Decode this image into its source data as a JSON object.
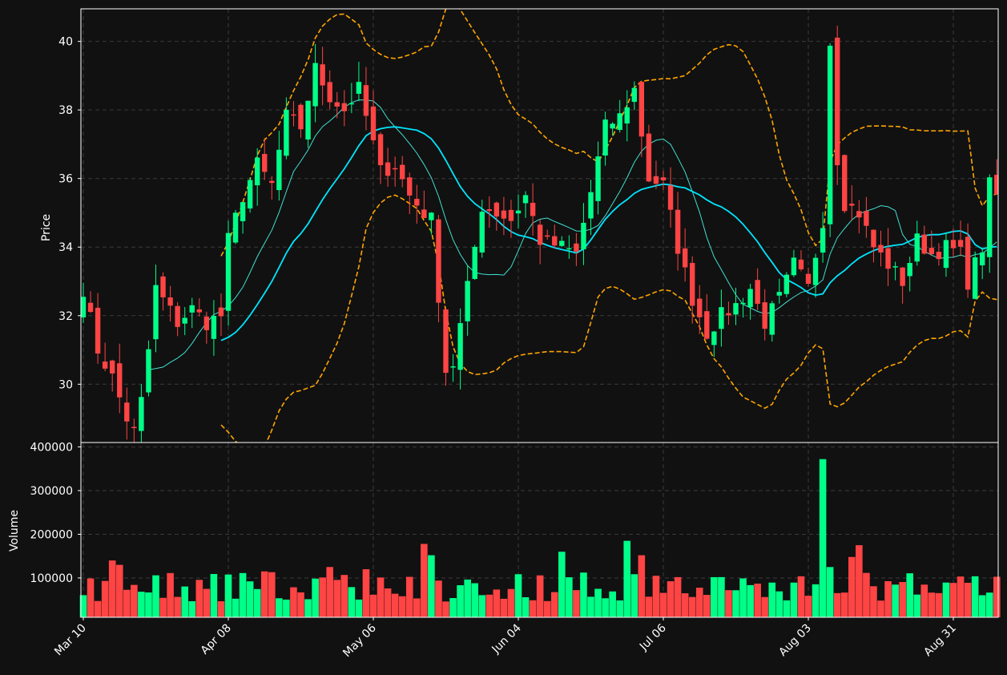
{
  "chart_data": {
    "type": "candlestick",
    "up_color": "#00ff88",
    "down_color": "#ff4444",
    "ma_fast_color": "#40e0d0",
    "ma_slow_color": "#00e5ff",
    "band_color": "#ffa500",
    "background": "#111111",
    "grid": true,
    "price_panel": {
      "ylabel": "Price",
      "ylim": [
        28.3,
        40.95
      ],
      "yticks": [
        30,
        32,
        34,
        36,
        38,
        40
      ]
    },
    "volume_panel": {
      "ylabel": "Volume",
      "ylim": [
        10000,
        410000
      ],
      "yticks": [
        100000,
        200000,
        300000,
        400000
      ]
    },
    "x_tick_labels": [
      "Mar 10",
      "Apr 08",
      "May 06",
      "Jun 04",
      "Jul 06",
      "Aug 03",
      "Aug 31"
    ],
    "x_tick_index": [
      0,
      20,
      40,
      60,
      80,
      100,
      120
    ],
    "n_bars": 127,
    "close_anchors": [
      [
        0,
        32.8
      ],
      [
        2,
        31.0
      ],
      [
        4,
        30.2
      ],
      [
        6,
        29.0
      ],
      [
        7,
        28.6
      ],
      [
        8,
        29.5
      ],
      [
        9,
        31.0
      ],
      [
        10,
        32.8
      ],
      [
        13,
        31.8
      ],
      [
        15,
        32.2
      ],
      [
        17,
        31.8
      ],
      [
        19,
        32.0
      ],
      [
        20,
        34.2
      ],
      [
        22,
        35.5
      ],
      [
        24,
        36.4
      ],
      [
        26,
        35.8
      ],
      [
        28,
        37.8
      ],
      [
        30,
        37.5
      ],
      [
        32,
        39.2
      ],
      [
        34,
        38.4
      ],
      [
        36,
        38.0
      ],
      [
        38,
        38.6
      ],
      [
        40,
        37.0
      ],
      [
        41,
        36.2
      ],
      [
        43,
        36.4
      ],
      [
        45,
        35.5
      ],
      [
        47,
        35.0
      ],
      [
        48,
        34.8
      ],
      [
        50,
        30.4
      ],
      [
        51,
        30.6
      ],
      [
        53,
        32.8
      ],
      [
        55,
        35.2
      ],
      [
        57,
        35.0
      ],
      [
        59,
        34.8
      ],
      [
        61,
        35.5
      ],
      [
        63,
        34.2
      ],
      [
        66,
        34.0
      ],
      [
        68,
        33.8
      ],
      [
        70,
        35.6
      ],
      [
        72,
        37.5
      ],
      [
        74,
        37.8
      ],
      [
        76,
        38.6
      ],
      [
        78,
        36.0
      ],
      [
        80,
        35.8
      ],
      [
        82,
        34.0
      ],
      [
        84,
        32.5
      ],
      [
        86,
        31.5
      ],
      [
        88,
        32.0
      ],
      [
        90,
        32.3
      ],
      [
        92,
        32.8
      ],
      [
        94,
        31.8
      ],
      [
        96,
        32.5
      ],
      [
        98,
        33.5
      ],
      [
        100,
        32.8
      ],
      [
        101,
        33.8
      ],
      [
        102,
        34.8
      ],
      [
        103,
        40.0
      ],
      [
        104,
        36.6
      ],
      [
        105,
        35.3
      ],
      [
        107,
        35.0
      ],
      [
        109,
        34.0
      ],
      [
        111,
        33.5
      ],
      [
        113,
        33.0
      ],
      [
        115,
        34.2
      ],
      [
        117,
        33.8
      ],
      [
        119,
        34.0
      ],
      [
        121,
        33.8
      ],
      [
        122,
        33.0
      ],
      [
        124,
        34.0
      ],
      [
        125,
        35.8
      ],
      [
        126,
        35.5
      ]
    ],
    "volume_spikes": [
      [
        4,
        140000
      ],
      [
        5,
        130000
      ],
      [
        25,
        115000
      ],
      [
        34,
        125000
      ],
      [
        39,
        120000
      ],
      [
        47,
        178000
      ],
      [
        48,
        152000
      ],
      [
        66,
        160000
      ],
      [
        75,
        185000
      ],
      [
        77,
        152000
      ],
      [
        102,
        372000
      ],
      [
        103,
        125000
      ],
      [
        107,
        175000
      ],
      [
        106,
        148000
      ]
    ],
    "series": [
      {
        "name": "",
        "style": "thin solid",
        "window": 10
      },
      {
        "name": "",
        "style": "thick solid",
        "window": 20
      },
      {
        "name": "",
        "style": "dashed",
        "window": 20,
        "type": "upper band"
      },
      {
        "name": "",
        "style": "dashed",
        "window": 20,
        "type": "lower band"
      }
    ]
  }
}
